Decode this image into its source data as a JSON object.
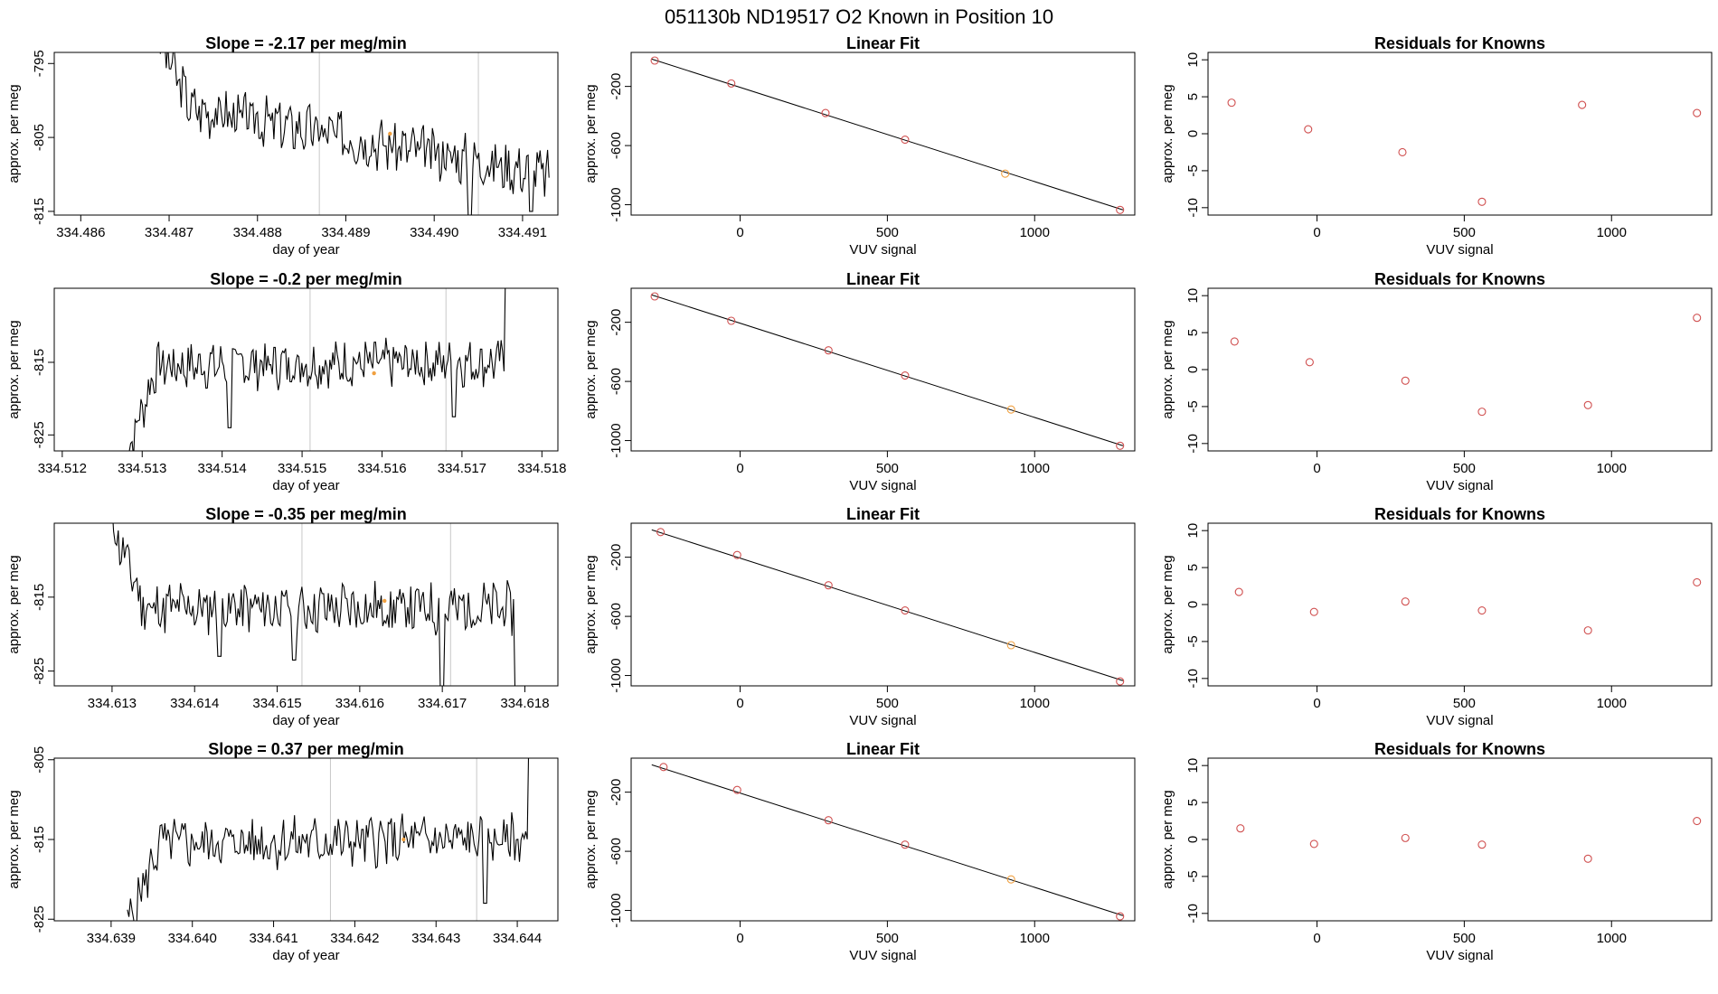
{
  "page": {
    "title": "051130b      ND19517   O2 Known in Position  10"
  },
  "colors": {
    "axis": "#000000",
    "trace": "#000000",
    "marker": "#f0a040",
    "points": "#d05050",
    "vline": "#c8c8c8"
  },
  "chart_data": [
    {
      "type": "line",
      "row": 0,
      "col": 0,
      "title": "Slope =  -2.17  per meg/min",
      "xlabel": "day of year",
      "ylabel": "approx. per meg",
      "xlim": [
        334.4857,
        334.4914
      ],
      "ylim": [
        -815.5,
        -793.5
      ],
      "xticks": [
        334.486,
        334.487,
        334.488,
        334.489,
        334.49,
        334.491
      ],
      "xtick_labels": [
        "334.486",
        "334.487",
        "334.488",
        "334.489",
        "334.490",
        "334.491"
      ],
      "yticks": [
        -795,
        -805,
        -815
      ],
      "ytick_labels": [
        "-795",
        "-805",
        "-815"
      ],
      "vlines": [
        334.4887,
        334.4905
      ],
      "marker": {
        "x": 334.4895,
        "y": -804.5
      },
      "trace": {
        "x_start": 334.4869,
        "x_end": 334.4913,
        "y_start": -792,
        "y_mid": -801,
        "y_end": -810,
        "amplitude": 1.5,
        "seed": 3,
        "dips": [
          {
            "x": 334.4904,
            "y": -816
          },
          {
            "x": 334.4911,
            "y": -815
          }
        ]
      }
    },
    {
      "type": "line",
      "row": 0,
      "col": 1,
      "title": "Linear Fit",
      "xlabel": "VUV signal",
      "ylabel": "approx. per meg",
      "xlim": [
        -370,
        1340
      ],
      "ylim": [
        -1070,
        30
      ],
      "xticks": [
        0,
        500,
        1000
      ],
      "xtick_labels": [
        "0",
        "500",
        "1000"
      ],
      "yticks": [
        -200,
        -600,
        -1000
      ],
      "ytick_labels": [
        "-200",
        "-600",
        "-1000"
      ],
      "line": {
        "x": [
          -300,
          1300
        ],
        "y": [
          -15,
          -1035
        ]
      },
      "points": [
        {
          "x": -290,
          "y": -25
        },
        {
          "x": -30,
          "y": -180
        },
        {
          "x": 290,
          "y": -380
        },
        {
          "x": 560,
          "y": -560
        },
        {
          "x": 900,
          "y": -790,
          "highlight": true
        },
        {
          "x": 1290,
          "y": -1035
        }
      ]
    },
    {
      "type": "scatter",
      "row": 0,
      "col": 2,
      "title": "Residuals for Knowns",
      "xlabel": "VUV signal",
      "ylabel": "approx. per meg",
      "xlim": [
        -370,
        1340
      ],
      "ylim": [
        -11,
        11
      ],
      "xticks": [
        0,
        500,
        1000
      ],
      "xtick_labels": [
        "0",
        "500",
        "1000"
      ],
      "yticks": [
        10,
        5,
        0,
        -5,
        -10
      ],
      "ytick_labels": [
        "10",
        "5",
        "0",
        "-5",
        "-10"
      ],
      "points": [
        {
          "x": -290,
          "y": 4.2
        },
        {
          "x": -30,
          "y": 0.6
        },
        {
          "x": 290,
          "y": -2.5
        },
        {
          "x": 560,
          "y": -9.2
        },
        {
          "x": 900,
          "y": 3.9
        },
        {
          "x": 1290,
          "y": 2.8
        }
      ]
    },
    {
      "type": "line",
      "row": 1,
      "col": 0,
      "title": "Slope =  -0.2  per meg/min",
      "xlabel": "day of year",
      "ylabel": "approx. per meg",
      "xlim": [
        334.5119,
        334.5182
      ],
      "ylim": [
        -827.2,
        -804.8
      ],
      "xticks": [
        334.512,
        334.513,
        334.514,
        334.515,
        334.516,
        334.517,
        334.518
      ],
      "xtick_labels": [
        "334.512",
        "334.513",
        "334.514",
        "334.515",
        "334.516",
        "334.517",
        "334.518"
      ],
      "yticks": [
        -815,
        -825
      ],
      "ytick_labels": [
        "-815",
        "-825"
      ],
      "vlines": [
        334.5151,
        334.5168
      ],
      "marker": {
        "x": 334.5159,
        "y": -816.5
      },
      "trace": {
        "x_start": 334.5128,
        "x_end": 334.5176,
        "y_start": -828,
        "y_mid": -815.5,
        "y_end": -815,
        "amplitude": 1.4,
        "seed": 7,
        "dips": [
          {
            "x": 334.5141,
            "y": -824
          },
          {
            "x": 334.5169,
            "y": -822.5
          }
        ],
        "end_spike": -804
      }
    },
    {
      "type": "line",
      "row": 1,
      "col": 1,
      "title": "Linear Fit",
      "xlabel": "VUV signal",
      "ylabel": "approx. per meg",
      "xlim": [
        -370,
        1340
      ],
      "ylim": [
        -1070,
        30
      ],
      "xticks": [
        0,
        500,
        1000
      ],
      "xtick_labels": [
        "0",
        "500",
        "1000"
      ],
      "yticks": [
        -200,
        -600,
        -1000
      ],
      "ytick_labels": [
        "-200",
        "-600",
        "-1000"
      ],
      "line": {
        "x": [
          -300,
          1300
        ],
        "y": [
          -15,
          -1035
        ]
      },
      "points": [
        {
          "x": -290,
          "y": -25
        },
        {
          "x": -30,
          "y": -190
        },
        {
          "x": 300,
          "y": -390
        },
        {
          "x": 560,
          "y": -560
        },
        {
          "x": 920,
          "y": -790,
          "highlight": true
        },
        {
          "x": 1290,
          "y": -1035
        }
      ]
    },
    {
      "type": "scatter",
      "row": 1,
      "col": 2,
      "title": "Residuals for Knowns",
      "xlabel": "VUV signal",
      "ylabel": "approx. per meg",
      "xlim": [
        -370,
        1340
      ],
      "ylim": [
        -11,
        11
      ],
      "xticks": [
        0,
        500,
        1000
      ],
      "xtick_labels": [
        "0",
        "500",
        "1000"
      ],
      "yticks": [
        10,
        5,
        0,
        -5,
        -10
      ],
      "ytick_labels": [
        "10",
        "5",
        "0",
        "-5",
        "-10"
      ],
      "points": [
        {
          "x": -280,
          "y": 3.8
        },
        {
          "x": -25,
          "y": 1.0
        },
        {
          "x": 300,
          "y": -1.5
        },
        {
          "x": 560,
          "y": -5.7
        },
        {
          "x": 920,
          "y": -4.8
        },
        {
          "x": 1290,
          "y": 7.0
        }
      ]
    },
    {
      "type": "line",
      "row": 2,
      "col": 0,
      "title": "Slope =  -0.35  per meg/min",
      "xlabel": "day of year",
      "ylabel": "approx. per meg",
      "xlim": [
        334.6123,
        334.6184
      ],
      "ylim": [
        -827.0,
        -805.0
      ],
      "xticks": [
        334.613,
        334.614,
        334.615,
        334.616,
        334.617,
        334.618
      ],
      "xtick_labels": [
        "334.613",
        "334.614",
        "334.615",
        "334.616",
        "334.617",
        "334.618"
      ],
      "yticks": [
        -815,
        -825
      ],
      "ytick_labels": [
        "-815",
        "-825"
      ],
      "vlines": [
        334.6153,
        334.6171
      ],
      "marker": {
        "x": 334.6163,
        "y": -815.5
      },
      "trace": {
        "x_start": 334.613,
        "x_end": 334.6179,
        "y_start": -805,
        "y_mid": -816.5,
        "y_end": -816.5,
        "amplitude": 1.6,
        "seed": 11,
        "dips": [
          {
            "x": 334.6143,
            "y": -823
          },
          {
            "x": 334.6152,
            "y": -823.5
          },
          {
            "x": 334.617,
            "y": -828
          },
          {
            "x": 334.6179,
            "y": -828
          }
        ]
      }
    },
    {
      "type": "line",
      "row": 2,
      "col": 1,
      "title": "Linear Fit",
      "xlabel": "VUV signal",
      "ylabel": "approx. per meg",
      "xlim": [
        -370,
        1340
      ],
      "ylim": [
        -1070,
        30
      ],
      "xticks": [
        0,
        500,
        1000
      ],
      "xtick_labels": [
        "0",
        "500",
        "1000"
      ],
      "yticks": [
        -200,
        -600,
        -1000
      ],
      "ytick_labels": [
        "-200",
        "-600",
        "-1000"
      ],
      "line": {
        "x": [
          -300,
          1300
        ],
        "y": [
          -15,
          -1035
        ]
      },
      "points": [
        {
          "x": -270,
          "y": -30
        },
        {
          "x": -10,
          "y": -185
        },
        {
          "x": 300,
          "y": -390
        },
        {
          "x": 560,
          "y": -560
        },
        {
          "x": 920,
          "y": -795,
          "highlight": true
        },
        {
          "x": 1290,
          "y": -1040
        }
      ]
    },
    {
      "type": "scatter",
      "row": 2,
      "col": 2,
      "title": "Residuals for Knowns",
      "xlabel": "VUV signal",
      "ylabel": "approx. per meg",
      "xlim": [
        -370,
        1340
      ],
      "ylim": [
        -11,
        11
      ],
      "xticks": [
        0,
        500,
        1000
      ],
      "xtick_labels": [
        "0",
        "500",
        "1000"
      ],
      "yticks": [
        10,
        5,
        0,
        -5,
        -10
      ],
      "ytick_labels": [
        "10",
        "5",
        "0",
        "-5",
        "-10"
      ],
      "points": [
        {
          "x": -265,
          "y": 1.7
        },
        {
          "x": -10,
          "y": -1.0
        },
        {
          "x": 300,
          "y": 0.4
        },
        {
          "x": 560,
          "y": -0.8
        },
        {
          "x": 920,
          "y": -3.5
        },
        {
          "x": 1290,
          "y": 3.0
        }
      ]
    },
    {
      "type": "line",
      "row": 3,
      "col": 0,
      "title": "Slope =  0.37  per meg/min",
      "xlabel": "day of year",
      "ylabel": "approx. per meg",
      "xlim": [
        334.6383,
        334.6445
      ],
      "ylim": [
        -825.2,
        -804.8
      ],
      "xticks": [
        334.639,
        334.64,
        334.641,
        334.642,
        334.643,
        334.644
      ],
      "xtick_labels": [
        "334.639",
        "334.640",
        "334.641",
        "334.642",
        "334.643",
        "334.644"
      ],
      "yticks": [
        -805,
        -815,
        -825
      ],
      "ytick_labels": [
        "-805",
        "-815",
        "-825"
      ],
      "vlines": [
        334.6417,
        334.6435
      ],
      "marker": {
        "x": 334.6426,
        "y": -815
      },
      "trace": {
        "x_start": 334.6392,
        "x_end": 334.6442,
        "y_start": -826,
        "y_mid": -815.5,
        "y_end": -815,
        "amplitude": 1.4,
        "seed": 5,
        "dips": [
          {
            "x": 334.6436,
            "y": -823
          }
        ],
        "end_spike": -804
      }
    },
    {
      "type": "line",
      "row": 3,
      "col": 1,
      "title": "Linear Fit",
      "xlabel": "VUV signal",
      "ylabel": "approx. per meg",
      "xlim": [
        -370,
        1340
      ],
      "ylim": [
        -1070,
        30
      ],
      "xticks": [
        0,
        500,
        1000
      ],
      "xtick_labels": [
        "0",
        "500",
        "1000"
      ],
      "yticks": [
        -200,
        -600,
        -1000
      ],
      "ytick_labels": [
        "-200",
        "-600",
        "-1000"
      ],
      "line": {
        "x": [
          -300,
          1300
        ],
        "y": [
          -15,
          -1035
        ]
      },
      "points": [
        {
          "x": -260,
          "y": -30
        },
        {
          "x": -10,
          "y": -185
        },
        {
          "x": 300,
          "y": -390
        },
        {
          "x": 560,
          "y": -555
        },
        {
          "x": 920,
          "y": -790,
          "highlight": true
        },
        {
          "x": 1290,
          "y": -1040
        }
      ]
    },
    {
      "type": "scatter",
      "row": 3,
      "col": 2,
      "title": "Residuals for Knowns",
      "xlabel": "VUV signal",
      "ylabel": "approx. per meg",
      "xlim": [
        -370,
        1340
      ],
      "ylim": [
        -11,
        11
      ],
      "xticks": [
        0,
        500,
        1000
      ],
      "xtick_labels": [
        "0",
        "500",
        "1000"
      ],
      "yticks": [
        10,
        5,
        0,
        -5,
        -10
      ],
      "ytick_labels": [
        "10",
        "5",
        "0",
        "-5",
        "-10"
      ],
      "points": [
        {
          "x": -260,
          "y": 1.5
        },
        {
          "x": -10,
          "y": -0.6
        },
        {
          "x": 300,
          "y": 0.2
        },
        {
          "x": 560,
          "y": -0.7
        },
        {
          "x": 920,
          "y": -2.6
        },
        {
          "x": 1290,
          "y": 2.5
        }
      ]
    }
  ]
}
